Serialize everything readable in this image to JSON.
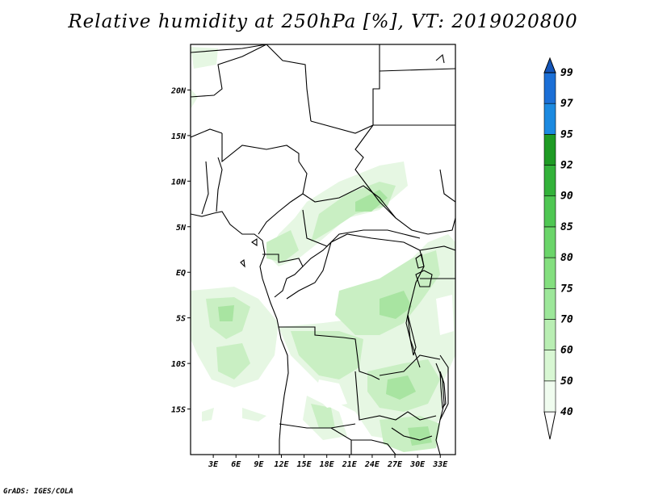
{
  "title": "Relative humidity at 250hPa [%], VT: 2019020800",
  "credit": "GrADS: IGES/COLA",
  "map": {
    "lat_ticks": [
      "20N",
      "15N",
      "10N",
      "5N",
      "EQ",
      "5S",
      "10S",
      "15S"
    ],
    "lat_values": [
      20,
      15,
      10,
      5,
      0,
      -5,
      -10,
      -15
    ],
    "lon_ticks": [
      "3E",
      "6E",
      "9E",
      "12E",
      "15E",
      "18E",
      "21E",
      "24E",
      "27E",
      "30E",
      "33E"
    ],
    "lon_values": [
      3,
      6,
      9,
      12,
      15,
      18,
      21,
      24,
      27,
      30,
      33
    ],
    "lon_range": [
      0,
      35
    ],
    "lat_range": [
      -20,
      25
    ]
  },
  "colorbar": {
    "levels": [
      "40",
      "50",
      "60",
      "70",
      "75",
      "80",
      "85",
      "90",
      "92",
      "95",
      "97",
      "99"
    ],
    "colors": [
      "#f0fcef",
      "#d8f7d3",
      "#b9eeb3",
      "#9de79a",
      "#84df7f",
      "#6bd56a",
      "#4fc753",
      "#33b23a",
      "#1e9b24",
      "#1c8ae0",
      "#1b6fd6",
      "#1455b8"
    ],
    "below_color": "#ffffff",
    "above_color": "#1455b8"
  },
  "fields": {
    "light": "#e6f7e3",
    "mid": "#c9efc3",
    "deep": "#a8e4a1"
  }
}
